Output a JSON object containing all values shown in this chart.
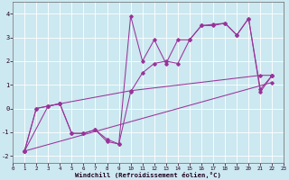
{
  "xlabel": "Windchill (Refroidissement éolien,°C)",
  "bg_color": "#cce8f0",
  "line_color": "#993399",
  "xlim": [
    0,
    23
  ],
  "ylim": [
    -2.3,
    4.5
  ],
  "xticks": [
    0,
    1,
    2,
    3,
    4,
    5,
    6,
    7,
    8,
    9,
    10,
    11,
    12,
    13,
    14,
    15,
    16,
    17,
    18,
    19,
    20,
    21,
    22,
    23
  ],
  "yticks": [
    -2,
    -1,
    0,
    1,
    2,
    3,
    4
  ],
  "series": [
    {
      "x": [
        1,
        2,
        3,
        4,
        5,
        6,
        7,
        8,
        9,
        10,
        11,
        12,
        13,
        14,
        15,
        16,
        17,
        18,
        19,
        20,
        21,
        22
      ],
      "y": [
        -1.8,
        0.0,
        0.1,
        0.2,
        -1.05,
        -1.05,
        -0.9,
        -1.4,
        -1.5,
        3.9,
        2.0,
        2.9,
        1.9,
        2.9,
        2.9,
        3.5,
        3.5,
        3.6,
        3.1,
        3.8,
        0.7,
        1.4
      ]
    },
    {
      "x": [
        1,
        2,
        3,
        4,
        5,
        6,
        7,
        8,
        9,
        10,
        11,
        12,
        13,
        14,
        15,
        16,
        17,
        18,
        19,
        20,
        21,
        22
      ],
      "y": [
        -1.8,
        0.0,
        0.1,
        0.2,
        -1.05,
        -1.05,
        -0.9,
        -1.3,
        -1.5,
        0.7,
        1.5,
        1.9,
        2.0,
        1.9,
        2.9,
        3.5,
        3.55,
        3.6,
        3.1,
        3.8,
        0.8,
        1.4
      ]
    },
    {
      "x": [
        1,
        3,
        4,
        10,
        21,
        22
      ],
      "y": [
        -1.8,
        0.1,
        0.2,
        0.75,
        1.4,
        1.4
      ]
    },
    {
      "x": [
        1,
        22
      ],
      "y": [
        -1.8,
        1.1
      ]
    }
  ]
}
